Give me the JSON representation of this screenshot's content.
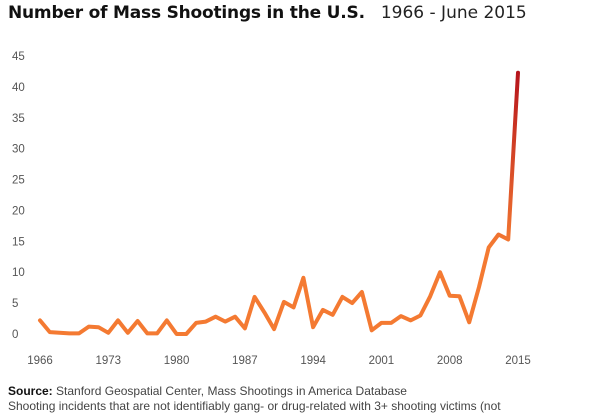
{
  "chart_data": {
    "type": "line",
    "title": "Number of Mass Shootings in the U.S.",
    "subtitle": "1966 - June 2015",
    "xlabel": "",
    "ylabel": "",
    "xlim": [
      1966,
      2015
    ],
    "ylim": [
      0,
      45
    ],
    "x_ticks": [
      1966,
      1973,
      1980,
      1987,
      1994,
      2001,
      2008,
      2015
    ],
    "y_ticks": [
      0,
      5,
      10,
      15,
      20,
      25,
      30,
      35,
      40,
      45
    ],
    "grid": false,
    "line_color_start": "#f47a32",
    "line_color_end": "#b5121b",
    "x": [
      1966,
      1967,
      1968,
      1969,
      1970,
      1971,
      1972,
      1973,
      1974,
      1975,
      1976,
      1977,
      1978,
      1979,
      1980,
      1981,
      1982,
      1983,
      1984,
      1985,
      1986,
      1987,
      1988,
      1989,
      1990,
      1991,
      1992,
      1993,
      1994,
      1995,
      1996,
      1997,
      1998,
      1999,
      2000,
      2001,
      2002,
      2003,
      2004,
      2005,
      2006,
      2007,
      2008,
      2009,
      2010,
      2011,
      2012,
      2013,
      2014,
      2015
    ],
    "y": [
      2.2,
      0.3,
      0.2,
      0.1,
      0.1,
      1.2,
      1.1,
      0.2,
      2.2,
      0.2,
      2.1,
      0.1,
      0.1,
      2.2,
      0.0,
      0.0,
      1.8,
      2.0,
      2.8,
      2.0,
      2.8,
      0.9,
      6.0,
      3.5,
      0.8,
      5.2,
      4.3,
      9.1,
      1.1,
      3.9,
      3.1,
      6.0,
      5.0,
      6.8,
      0.6,
      1.8,
      1.8,
      2.9,
      2.2,
      3.0,
      6.1,
      10.0,
      6.2,
      6.1,
      1.9,
      7.6,
      14.0,
      16.1,
      15.3,
      42.3
    ]
  },
  "footer": {
    "source_label": "Source:",
    "source_text": "Stanford Geospatial Center, Mass Shootings in America Database",
    "note": "Shooting incidents that are not identifiably gang- or drug-related with 3+ shooting victims (not"
  }
}
